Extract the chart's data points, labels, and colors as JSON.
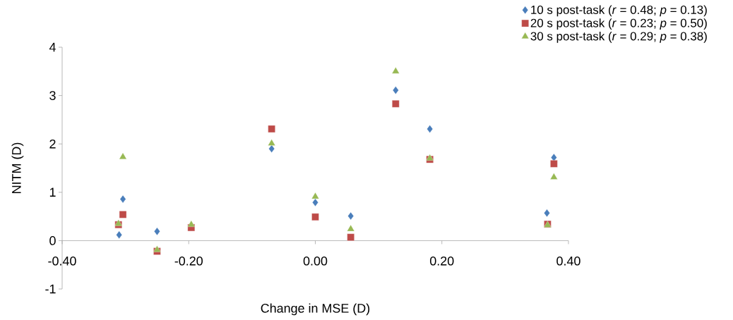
{
  "chart_data": {
    "type": "scatter",
    "xlabel": "Change in MSE (D)",
    "ylabel": "NITM (D)",
    "xlim": [
      -0.4,
      0.4
    ],
    "ylim": [
      -1,
      4
    ],
    "xticks": [
      {
        "value": -0.4,
        "label": "-0.40"
      },
      {
        "value": -0.2,
        "label": "-0.20"
      },
      {
        "value": 0,
        "label": "0.00"
      },
      {
        "value": 0.2,
        "label": "0.20"
      },
      {
        "value": 0.4,
        "label": "0.40"
      }
    ],
    "yticks": [
      -1,
      0,
      1,
      2,
      3,
      4
    ],
    "grid": false,
    "legend": "top right",
    "series": [
      {
        "name": "10 s post-task (*r* = 0.48; *p* = 0.13)",
        "color": "#4a7ebb",
        "marker": "diamond",
        "x": [
          -0.31,
          -0.304,
          -0.25,
          -0.069,
          0.0,
          0.056,
          0.127,
          0.181,
          0.366,
          0.377
        ],
        "values": [
          0.12,
          0.86,
          0.19,
          1.9,
          0.79,
          0.51,
          3.11,
          2.31,
          0.57,
          1.72
        ]
      },
      {
        "name": "20 s post-task (*r* = 0.23; *p* = 0.50)",
        "color": "#be4b48",
        "marker": "square",
        "x": [
          -0.311,
          -0.304,
          -0.25,
          -0.196,
          -0.069,
          0.0,
          0.056,
          0.127,
          0.181,
          0.367,
          0.377
        ],
        "values": [
          0.33,
          0.54,
          -0.22,
          0.27,
          2.31,
          0.49,
          0.07,
          2.83,
          1.68,
          0.34,
          1.59
        ]
      },
      {
        "name": "30 s post-task (*r* = 0.29; *p* = 0.38)",
        "color": "#98b954",
        "marker": "triangle",
        "x": [
          -0.311,
          -0.304,
          -0.25,
          -0.196,
          -0.069,
          0.0,
          0.056,
          0.127,
          0.181,
          0.367,
          0.377
        ],
        "values": [
          0.35,
          1.73,
          -0.19,
          0.33,
          2.01,
          0.91,
          0.24,
          3.5,
          1.7,
          0.32,
          1.31
        ]
      }
    ]
  }
}
